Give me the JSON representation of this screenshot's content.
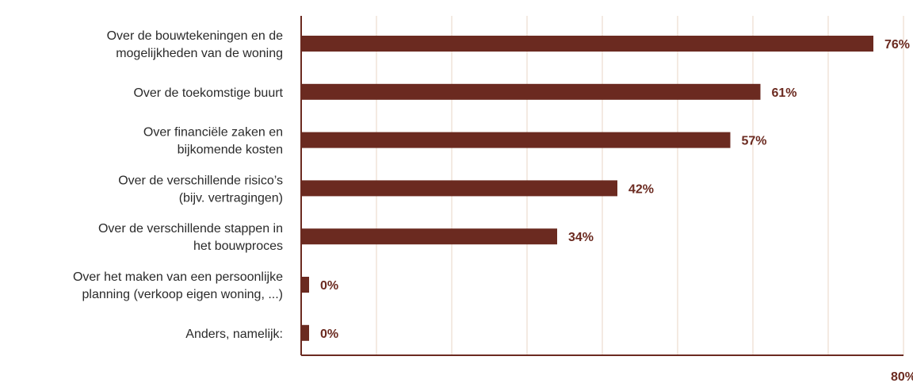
{
  "colors": {
    "bar": "#6b2a20",
    "axis": "#6b2a20",
    "grid": "#f1e4d8",
    "label": "#2a2a2a",
    "value": "#6b2a20"
  },
  "chart_data": {
    "type": "bar",
    "orientation": "horizontal",
    "categories": [
      [
        "Over de bouwtekeningen en de",
        "mogelijkheden van de woning"
      ],
      [
        "Over de toekomstige buurt"
      ],
      [
        "Over financiële zaken en",
        "bijkomende kosten"
      ],
      [
        "Over de verschillende risico’s",
        "(bijv. vertragingen)"
      ],
      [
        "Over de verschillende stappen in",
        "het bouwproces"
      ],
      [
        "Over het maken van een persoonlijke",
        "planning (verkoop eigen woning, ...)"
      ],
      [
        "Anders, namelijk:"
      ]
    ],
    "values": [
      76,
      61,
      57,
      42,
      34,
      0,
      0
    ],
    "value_labels": [
      "76%",
      "61%",
      "57%",
      "42%",
      "34%",
      "0%",
      "0%"
    ],
    "xlim": [
      0,
      80
    ],
    "x_ticks_labeled": [
      "80%"
    ],
    "grid": true,
    "grid_step": 10,
    "title": "",
    "xlabel": "",
    "ylabel": ""
  }
}
